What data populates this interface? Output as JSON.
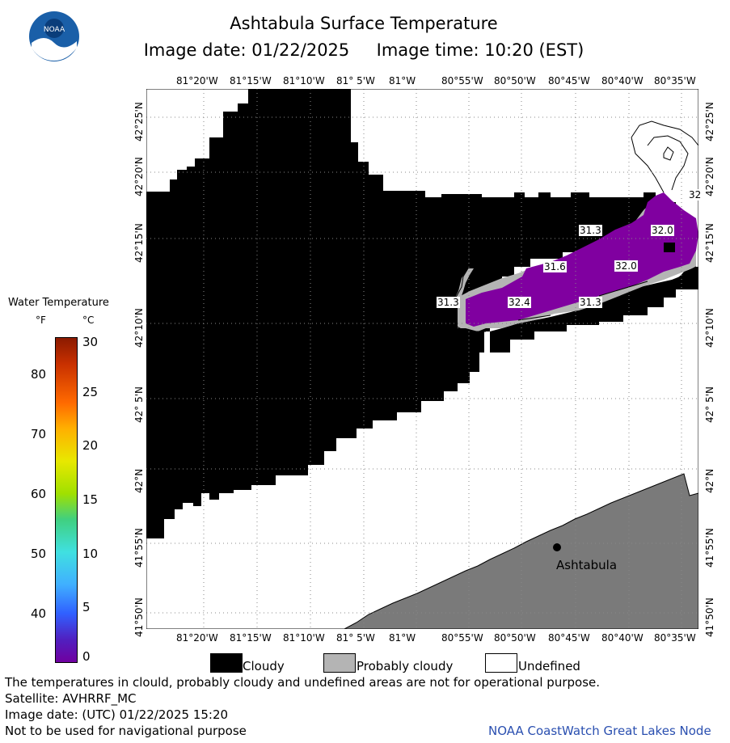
{
  "title": "Ashtabula Surface Temperature",
  "subtitle": "Image date: 01/22/2025     Image time: 10:20 (EST)",
  "logo_text": "NOAA",
  "colors": {
    "cloudy": "#000000",
    "probably_cloudy": "#b4b4b4",
    "undefined": "#ffffff",
    "land": "#7a7a7a",
    "temp_purple": "#8000a0"
  },
  "top_axis": [
    "81°20'W",
    "81°15'W",
    "81°10'W",
    "81° 5'W",
    "81°W",
    "80°55'W",
    "80°50'W",
    "80°45'W",
    "80°40'W",
    "80°35'W"
  ],
  "bottom_axis": [
    "81°20'W",
    "81°15'W",
    "81°10'W",
    "81° 5'W",
    "81°W",
    "80°55'W",
    "80°50'W",
    "80°45'W",
    "80°40'W",
    "80°35'W"
  ],
  "left_axis": [
    "42°25'N",
    "42°20'N",
    "42°15'N",
    "42°10'N",
    "42° 5'N",
    "42°N",
    "41°55'N",
    "41°50'N"
  ],
  "right_axis": [
    "42°25'N",
    "42°20'N",
    "42°15'N",
    "42°10'N",
    "42° 5'N",
    "42°N",
    "41°55'N",
    "41°50'N"
  ],
  "temp_labels": [
    {
      "text": "31.3"
    },
    {
      "text": "32.0"
    },
    {
      "text": "31.6"
    },
    {
      "text": "32.0"
    },
    {
      "text": "31.3"
    },
    {
      "text": "32.4"
    },
    {
      "text": "31.3"
    },
    {
      "text": "32"
    }
  ],
  "city": "Ashtabula",
  "legend": {
    "title": "Water Temperature",
    "unit_f": "°F",
    "unit_c": "°C",
    "f_ticks": [
      "80",
      "70",
      "60",
      "50",
      "40"
    ],
    "c_ticks": [
      "30",
      "25",
      "20",
      "15",
      "10",
      "5",
      "0"
    ]
  },
  "bottom_legend": [
    {
      "label": "Cloudy",
      "color": "#000000"
    },
    {
      "label": "Probably cloudy",
      "color": "#b4b4b4"
    },
    {
      "label": "Undefined",
      "color": "#ffffff"
    }
  ],
  "footer": {
    "line1": "The temperatures in clould, probably cloudy and undefined areas are not for operational purpose.",
    "line2": "Satellite: AVHRRF_MC",
    "line3": "Image date: (UTC) 01/22/2025  15:20",
    "line4": "Not to be used for navigational purpose",
    "credit": "NOAA CoastWatch Great Lakes Node"
  }
}
